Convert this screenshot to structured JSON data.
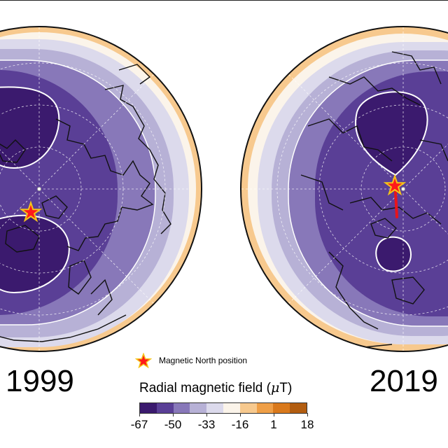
{
  "maps": [
    {
      "year_label": "1999",
      "pole_marker": true,
      "drift_track": false
    },
    {
      "year_label": "2019",
      "pole_marker": true,
      "drift_track": true
    }
  ],
  "legend": {
    "marker_label": "Magnetic North position",
    "marker_fill": "#ff1a1a",
    "marker_stroke": "#f5c518"
  },
  "colorbar": {
    "title_text": "Radial magnetic field (",
    "title_unit_symbol": "μ",
    "title_unit_rest": "T)",
    "tick_labels": [
      "-67",
      "-50",
      "-33",
      "-16",
      "1",
      "18"
    ],
    "bin_colors": [
      "#3b1a6e",
      "#5a3f96",
      "#8878b9",
      "#b7b1d6",
      "#dcdaec",
      "#fbf4ea",
      "#f7c98e",
      "#ef9f47",
      "#d9791c",
      "#b25d10"
    ]
  }
}
